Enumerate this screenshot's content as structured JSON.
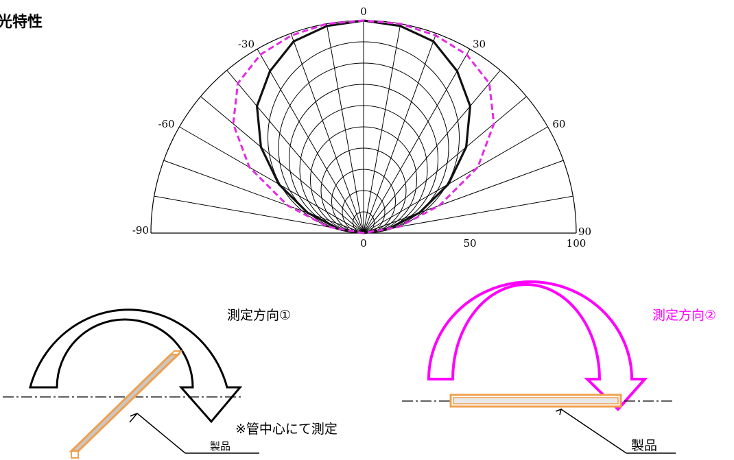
{
  "title": "配光特性",
  "chart_data": {
    "type": "polar",
    "radial_range": [
      0,
      100
    ],
    "angle_range": [
      -90,
      90
    ],
    "angle_tick_labels": [
      "-90",
      "-60",
      "-30",
      "0",
      "30",
      "60",
      "90"
    ],
    "radial_tick_labels": [
      "0",
      "50",
      "100"
    ],
    "series": [
      {
        "style": "solid",
        "color": "#111111",
        "angles": [
          -90,
          -80,
          -70,
          -60,
          -50,
          -40,
          -30,
          -20,
          -10,
          0,
          10,
          20,
          30,
          40,
          50,
          60,
          70,
          80,
          90
        ],
        "values": [
          0,
          12,
          28,
          46,
          63,
          78,
          88,
          96,
          99,
          100,
          99,
          96,
          88,
          78,
          63,
          46,
          28,
          12,
          0
        ]
      },
      {
        "style": "dashed",
        "color": "#e629e6",
        "angles": [
          -90,
          -80,
          -70,
          -60,
          -50,
          -40,
          -30,
          -20,
          -10,
          0,
          10,
          20,
          30,
          40,
          50,
          60,
          70,
          80,
          90
        ],
        "values": [
          0,
          17,
          38,
          62,
          80,
          92,
          97,
          99,
          100,
          100,
          100,
          99,
          97,
          92,
          80,
          62,
          38,
          17,
          0
        ]
      }
    ]
  },
  "direction1": {
    "label": "測定方向①",
    "color": "#000000"
  },
  "direction2": {
    "label": "測定方向②",
    "color": "#ff00ff"
  },
  "note": "※管中心にて測定",
  "product_label": "製品",
  "colors": {
    "product": "#f0a050",
    "product_fill": "#c8c8c8"
  }
}
